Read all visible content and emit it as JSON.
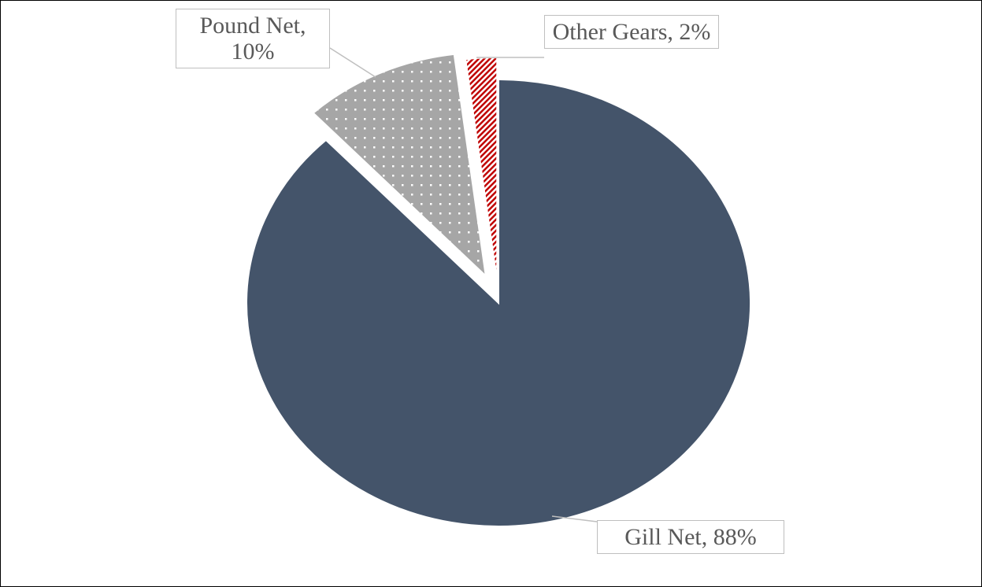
{
  "chart_data": {
    "type": "pie",
    "values": [
      88,
      10,
      2
    ],
    "value_labels": [
      "Gill Net, 88%",
      "Pound Net, 10%",
      "Other Gears, 2%"
    ],
    "colors": [
      "#44546a",
      "#a6a6a6",
      "#c00000"
    ]
  }
}
